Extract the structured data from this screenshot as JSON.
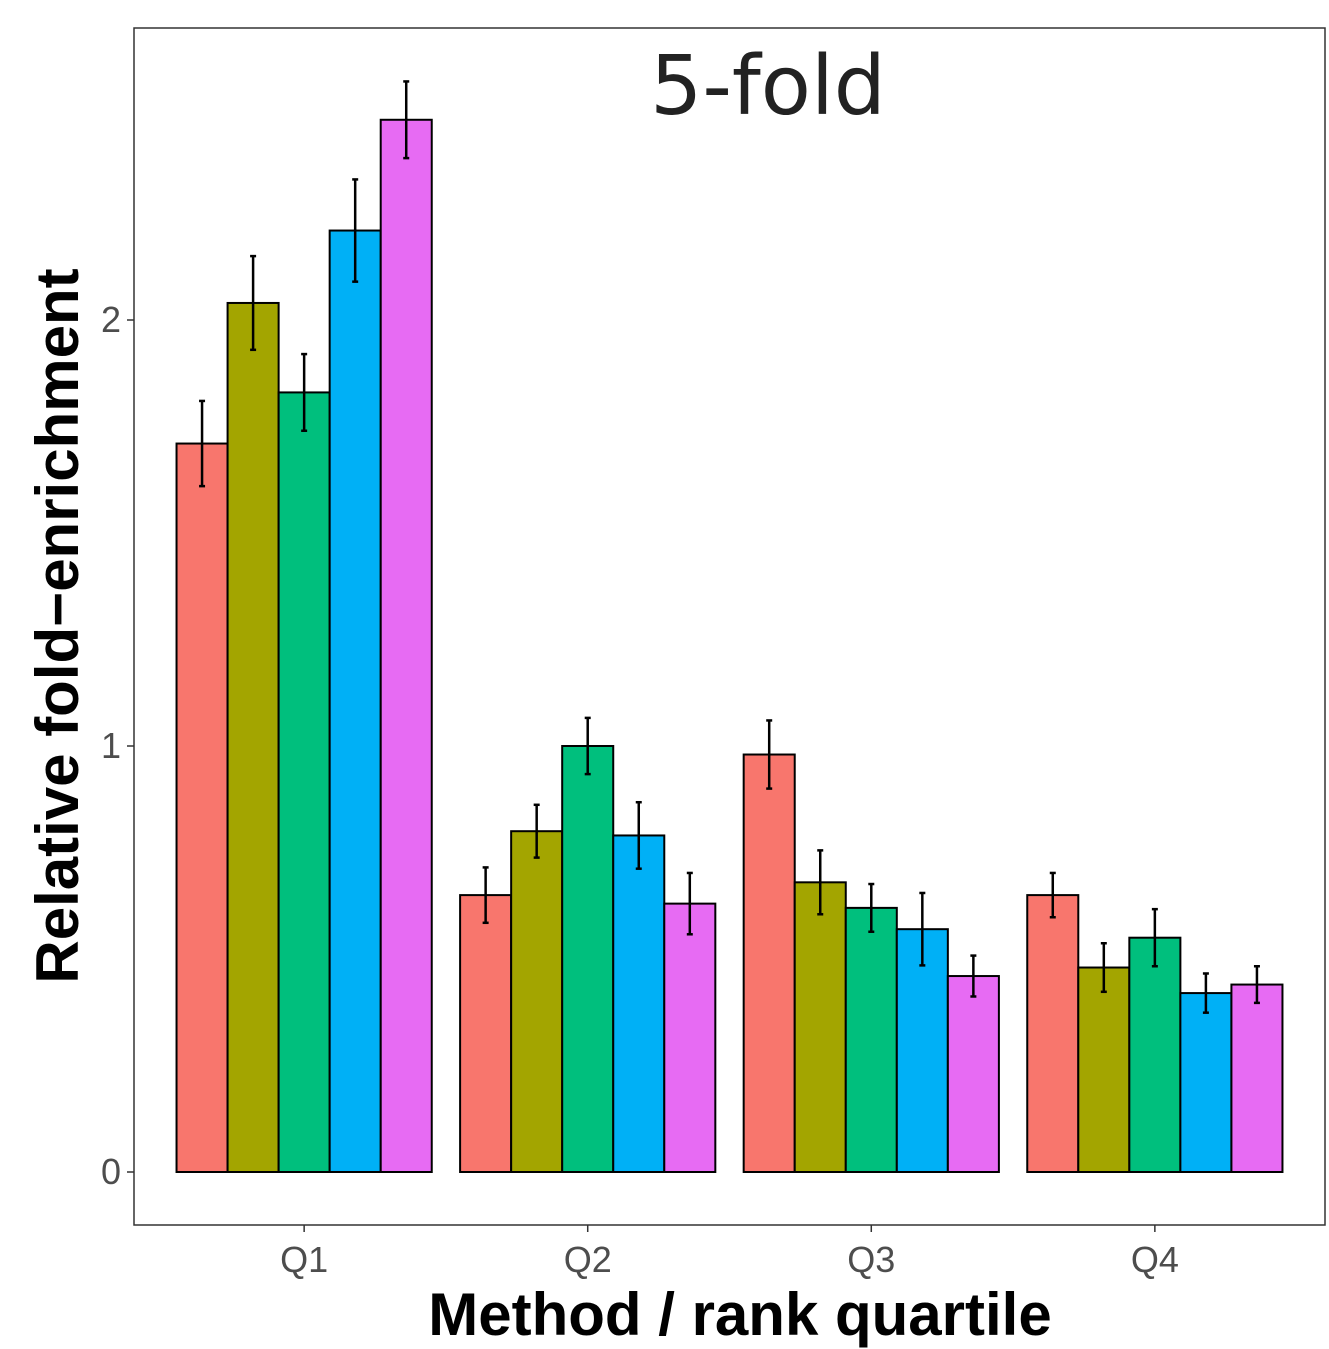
{
  "chart_data": {
    "type": "bar",
    "title": "5-fold",
    "xlabel": "Method / rank quartile",
    "ylabel": "Relative fold−enrichment",
    "categories": [
      "Q1",
      "Q2",
      "Q3",
      "Q4"
    ],
    "yticks": [
      0,
      1,
      2
    ],
    "ylim": [
      -0.13,
      2.68
    ],
    "grid": false,
    "legend": "none",
    "series": [
      {
        "color": "#F8766D",
        "values": [
          1.71,
          0.65,
          0.98,
          0.65
        ],
        "errors": [
          0.1,
          0.065,
          0.08,
          0.052
        ]
      },
      {
        "color": "#A3A500",
        "values": [
          2.04,
          0.8,
          0.68,
          0.48
        ],
        "errors": [
          0.11,
          0.062,
          0.075,
          0.057
        ]
      },
      {
        "color": "#00BF7D",
        "values": [
          1.83,
          1.0,
          0.62,
          0.55
        ],
        "errors": [
          0.09,
          0.066,
          0.056,
          0.067
        ]
      },
      {
        "color": "#00B0F6",
        "values": [
          2.21,
          0.79,
          0.57,
          0.42
        ],
        "errors": [
          0.12,
          0.078,
          0.085,
          0.046
        ]
      },
      {
        "color": "#E76BF3",
        "values": [
          2.47,
          0.63,
          0.46,
          0.44
        ],
        "errors": [
          0.09,
          0.072,
          0.048,
          0.043
        ]
      }
    ]
  }
}
